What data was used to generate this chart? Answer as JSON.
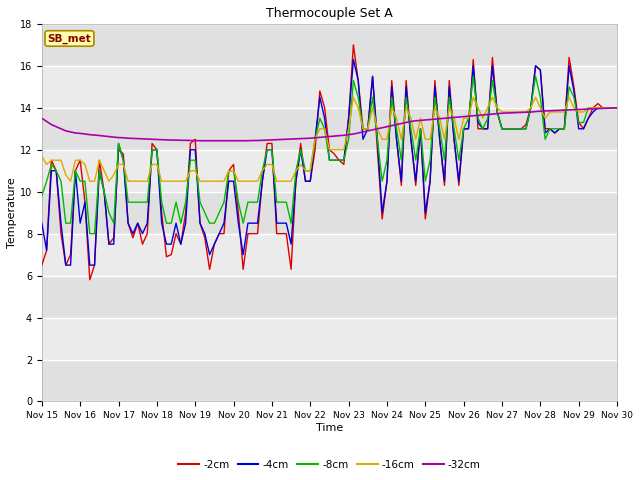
{
  "title": "Thermocouple Set A",
  "xlabel": "Time",
  "ylabel": "Temperature",
  "ylim": [
    0,
    18
  ],
  "yticks": [
    0,
    2,
    4,
    6,
    8,
    10,
    12,
    14,
    16,
    18
  ],
  "xlim": [
    0,
    15
  ],
  "xtick_labels": [
    "Nov 15",
    "Nov 16",
    "Nov 17",
    "Nov 18",
    "Nov 19",
    "Nov 20",
    "Nov 21",
    "Nov 22",
    "Nov 23",
    "Nov 24",
    "Nov 25",
    "Nov 26",
    "Nov 27",
    "Nov 28",
    "Nov 29",
    "Nov 30"
  ],
  "colors": {
    "-2cm": "#dd0000",
    "-4cm": "#0000dd",
    "-8cm": "#00bb00",
    "-16cm": "#ddaa00",
    "-32cm": "#aa00aa"
  },
  "annotation_text": "SB_met",
  "annotation_bg": "#ffffaa",
  "annotation_border": "#aa8800",
  "annotation_text_color": "#880000",
  "t_days": [
    0,
    0.125,
    0.25,
    0.375,
    0.5,
    0.625,
    0.75,
    0.875,
    1,
    1.125,
    1.25,
    1.375,
    1.5,
    1.625,
    1.75,
    1.875,
    2,
    2.125,
    2.25,
    2.375,
    2.5,
    2.625,
    2.75,
    2.875,
    3,
    3.125,
    3.25,
    3.375,
    3.5,
    3.625,
    3.75,
    3.875,
    4,
    4.125,
    4.25,
    4.375,
    4.5,
    4.625,
    4.75,
    4.875,
    5,
    5.125,
    5.25,
    5.375,
    5.5,
    5.625,
    5.75,
    5.875,
    6,
    6.125,
    6.25,
    6.375,
    6.5,
    6.625,
    6.75,
    6.875,
    7,
    7.125,
    7.25,
    7.375,
    7.5,
    7.625,
    7.75,
    7.875,
    8,
    8.125,
    8.25,
    8.375,
    8.5,
    8.625,
    8.75,
    8.875,
    9,
    9.125,
    9.25,
    9.375,
    9.5,
    9.625,
    9.75,
    9.875,
    10,
    10.125,
    10.25,
    10.375,
    10.5,
    10.625,
    10.75,
    10.875,
    11,
    11.125,
    11.25,
    11.375,
    11.5,
    11.625,
    11.75,
    11.875,
    12,
    12.125,
    12.25,
    12.375,
    12.5,
    12.625,
    12.75,
    12.875,
    13,
    13.125,
    13.25,
    13.375,
    13.5,
    13.625,
    13.75,
    13.875,
    14,
    14.125,
    14.25,
    14.375,
    14.5,
    14.625,
    14.75,
    14.875,
    15
  ],
  "d2cm": [
    6.5,
    7.2,
    11.5,
    11.0,
    8.0,
    6.5,
    7.0,
    11.0,
    11.5,
    9.5,
    5.8,
    6.5,
    11.5,
    10.0,
    7.5,
    7.8,
    12.0,
    11.8,
    8.5,
    7.8,
    8.5,
    7.5,
    8.0,
    12.3,
    12.0,
    9.0,
    6.9,
    7.0,
    8.0,
    7.5,
    9.0,
    12.3,
    12.5,
    8.5,
    7.8,
    6.3,
    7.5,
    8.0,
    8.0,
    11.0,
    11.3,
    9.0,
    6.3,
    8.0,
    8.0,
    8.0,
    10.5,
    12.3,
    12.3,
    8.0,
    8.0,
    8.0,
    6.3,
    10.5,
    12.3,
    10.5,
    10.5,
    12.0,
    14.8,
    14.0,
    12.0,
    11.8,
    11.5,
    11.3,
    13.5,
    17.0,
    15.3,
    13.0,
    13.0,
    15.5,
    12.0,
    8.7,
    10.5,
    15.3,
    12.5,
    10.3,
    15.3,
    12.5,
    10.3,
    13.0,
    8.7,
    10.5,
    15.3,
    12.5,
    10.3,
    15.3,
    12.5,
    10.3,
    13.0,
    13.0,
    16.3,
    13.0,
    13.0,
    13.0,
    16.4,
    13.8,
    13.0,
    13.0,
    13.0,
    13.0,
    13.0,
    13.2,
    14.0,
    16.0,
    15.8,
    13.0,
    13.0,
    12.8,
    13.0,
    13.0,
    16.4,
    15.0,
    13.3,
    13.0,
    13.5,
    14.0,
    14.2,
    14.0,
    14.0,
    14.0,
    14.0
  ],
  "d4cm": [
    8.5,
    7.2,
    11.0,
    11.0,
    8.5,
    6.5,
    6.5,
    11.0,
    8.5,
    9.5,
    6.5,
    6.5,
    11.0,
    10.0,
    7.5,
    7.5,
    12.3,
    11.5,
    8.5,
    8.0,
    8.5,
    8.0,
    8.5,
    12.0,
    12.0,
    8.5,
    7.5,
    7.5,
    8.5,
    7.5,
    8.5,
    12.0,
    12.0,
    8.5,
    8.0,
    7.0,
    7.5,
    8.0,
    8.5,
    10.5,
    10.5,
    8.5,
    7.0,
    8.5,
    8.5,
    8.5,
    10.5,
    12.0,
    12.0,
    8.5,
    8.5,
    8.5,
    7.5,
    10.5,
    12.0,
    10.5,
    10.5,
    12.5,
    14.5,
    13.5,
    11.5,
    11.5,
    11.5,
    11.5,
    13.5,
    16.3,
    15.3,
    12.5,
    13.0,
    15.5,
    12.5,
    9.0,
    10.5,
    15.0,
    12.5,
    10.5,
    15.0,
    12.5,
    10.5,
    13.0,
    9.0,
    10.5,
    15.0,
    12.5,
    10.5,
    15.0,
    12.5,
    10.5,
    13.0,
    13.0,
    16.0,
    13.3,
    13.0,
    13.0,
    16.0,
    13.8,
    13.0,
    13.0,
    13.0,
    13.0,
    13.0,
    13.0,
    14.0,
    16.0,
    15.8,
    12.8,
    13.0,
    12.8,
    13.0,
    13.0,
    16.0,
    14.8,
    13.0,
    13.0,
    13.5,
    13.8,
    14.0,
    14.0,
    14.0,
    14.0,
    14.0
  ],
  "d8cm": [
    9.8,
    10.5,
    11.3,
    11.0,
    10.5,
    8.5,
    8.5,
    11.0,
    10.5,
    10.5,
    8.0,
    8.0,
    11.0,
    10.0,
    9.0,
    8.5,
    12.3,
    11.5,
    9.5,
    9.5,
    9.5,
    9.5,
    9.5,
    12.0,
    12.0,
    9.5,
    8.5,
    8.5,
    9.5,
    8.5,
    9.5,
    11.5,
    11.5,
    9.5,
    9.0,
    8.5,
    8.5,
    9.0,
    9.5,
    11.0,
    11.0,
    9.5,
    8.5,
    9.5,
    9.5,
    9.5,
    11.0,
    12.0,
    12.0,
    9.5,
    9.5,
    9.5,
    8.5,
    11.0,
    12.0,
    11.0,
    11.0,
    12.5,
    13.5,
    13.0,
    11.5,
    11.5,
    11.5,
    11.5,
    12.5,
    15.3,
    14.5,
    13.0,
    13.0,
    14.5,
    12.5,
    10.5,
    11.5,
    14.5,
    13.0,
    11.5,
    14.5,
    13.0,
    11.5,
    13.0,
    10.5,
    11.5,
    14.5,
    13.0,
    11.5,
    14.5,
    13.0,
    11.5,
    13.0,
    13.5,
    15.5,
    13.5,
    13.0,
    13.5,
    15.3,
    13.8,
    13.0,
    13.0,
    13.0,
    13.0,
    13.0,
    13.0,
    14.0,
    15.5,
    14.5,
    12.5,
    13.0,
    13.0,
    13.0,
    13.0,
    15.0,
    14.5,
    13.3,
    13.3,
    14.0,
    14.0,
    14.0,
    14.0,
    14.0,
    14.0,
    14.0
  ],
  "d16cm": [
    11.7,
    11.3,
    11.5,
    11.5,
    11.5,
    10.8,
    10.5,
    11.5,
    11.5,
    11.3,
    10.5,
    10.5,
    11.5,
    11.0,
    10.5,
    10.8,
    11.3,
    11.3,
    10.5,
    10.5,
    10.5,
    10.5,
    10.5,
    11.3,
    11.3,
    10.5,
    10.5,
    10.5,
    10.5,
    10.5,
    10.5,
    11.0,
    11.0,
    10.5,
    10.5,
    10.5,
    10.5,
    10.5,
    10.5,
    11.0,
    11.0,
    10.5,
    10.5,
    10.5,
    10.5,
    10.5,
    11.0,
    11.3,
    11.3,
    10.5,
    10.5,
    10.5,
    10.5,
    11.0,
    11.3,
    11.0,
    11.0,
    12.5,
    13.0,
    13.0,
    12.0,
    12.0,
    12.0,
    12.0,
    13.0,
    14.5,
    14.0,
    13.0,
    13.0,
    14.0,
    13.0,
    12.5,
    12.5,
    14.0,
    13.5,
    12.5,
    14.0,
    13.5,
    12.5,
    13.5,
    12.5,
    12.5,
    14.0,
    13.5,
    12.5,
    14.0,
    13.5,
    12.5,
    13.5,
    13.5,
    14.5,
    14.0,
    13.5,
    14.0,
    14.5,
    14.0,
    13.8,
    13.8,
    13.8,
    13.8,
    13.8,
    13.8,
    14.0,
    14.5,
    14.0,
    13.5,
    13.8,
    13.8,
    13.8,
    13.8,
    14.5,
    14.0,
    13.8,
    13.8,
    14.0,
    14.0,
    14.0,
    14.0,
    14.0,
    14.0,
    14.0
  ],
  "d32cm": [
    13.5,
    13.35,
    13.2,
    13.1,
    13.0,
    12.9,
    12.85,
    12.8,
    12.78,
    12.75,
    12.72,
    12.7,
    12.68,
    12.65,
    12.63,
    12.6,
    12.58,
    12.57,
    12.55,
    12.54,
    12.53,
    12.52,
    12.51,
    12.5,
    12.49,
    12.48,
    12.47,
    12.46,
    12.46,
    12.45,
    12.45,
    12.44,
    12.44,
    12.43,
    12.43,
    12.43,
    12.43,
    12.43,
    12.43,
    12.43,
    12.43,
    12.43,
    12.43,
    12.43,
    12.44,
    12.44,
    12.45,
    12.46,
    12.47,
    12.48,
    12.49,
    12.5,
    12.51,
    12.52,
    12.53,
    12.54,
    12.55,
    12.57,
    12.59,
    12.61,
    12.63,
    12.65,
    12.67,
    12.69,
    12.72,
    12.75,
    12.8,
    12.85,
    12.9,
    12.95,
    13.0,
    13.05,
    13.1,
    13.15,
    13.2,
    13.25,
    13.3,
    13.35,
    13.38,
    13.4,
    13.42,
    13.44,
    13.46,
    13.48,
    13.5,
    13.52,
    13.54,
    13.56,
    13.58,
    13.6,
    13.62,
    13.64,
    13.66,
    13.68,
    13.7,
    13.72,
    13.74,
    13.75,
    13.76,
    13.77,
    13.78,
    13.79,
    13.8,
    13.82,
    13.84,
    13.85,
    13.86,
    13.87,
    13.88,
    13.89,
    13.9,
    13.91,
    13.92,
    13.93,
    13.94,
    13.95,
    13.96,
    13.97,
    13.98,
    13.99,
    14.0
  ]
}
